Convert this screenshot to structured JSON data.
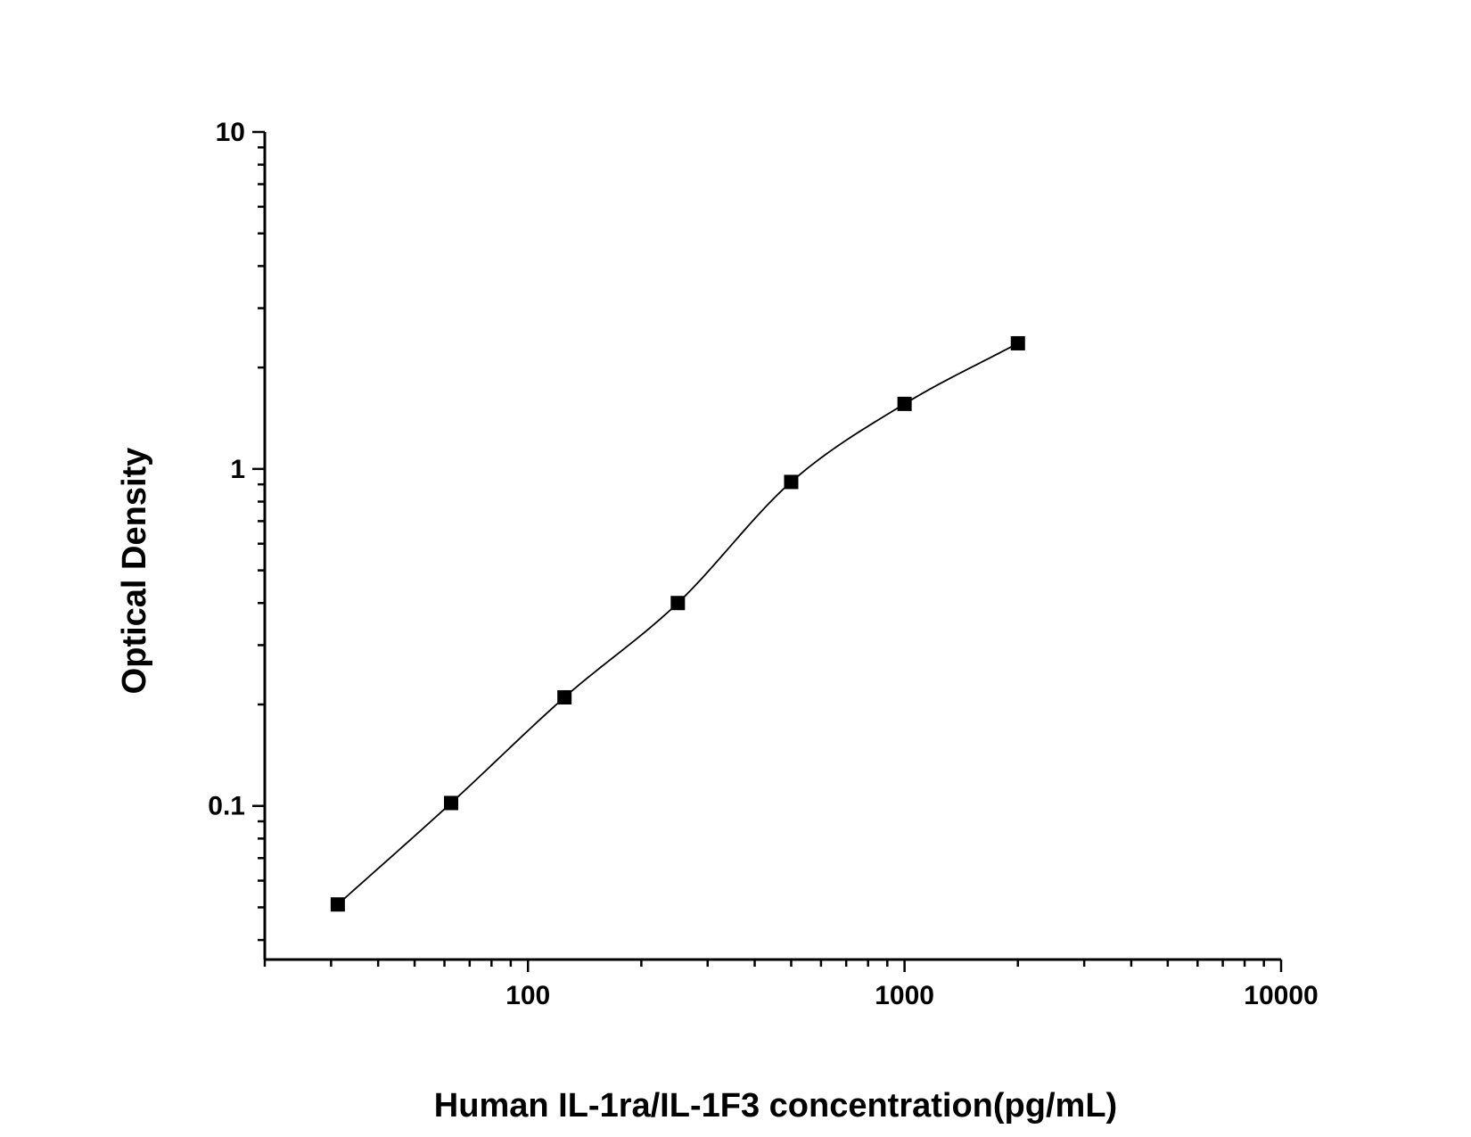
{
  "chart_data": {
    "type": "scatter",
    "title": "",
    "xlabel": "Human IL-1ra/IL-1F3 concentration(pg/mL)",
    "ylabel": "Optical Density",
    "x_scale": "log",
    "y_scale": "log",
    "xlim": [
      20,
      10000
    ],
    "ylim": [
      0.035,
      10
    ],
    "x_tick_labels": [
      "100",
      "1000",
      "10000"
    ],
    "y_tick_labels": [
      "0.1",
      "1",
      "10"
    ],
    "grid": false,
    "legend": "none",
    "series": [
      {
        "x": [
          31.25,
          62.5,
          125,
          250,
          500,
          1000,
          2000
        ],
        "y": [
          0.051,
          0.102,
          0.21,
          0.4,
          0.915,
          1.56,
          2.36
        ],
        "marker": "square",
        "color": "#000000",
        "fit_curve": true
      }
    ]
  }
}
